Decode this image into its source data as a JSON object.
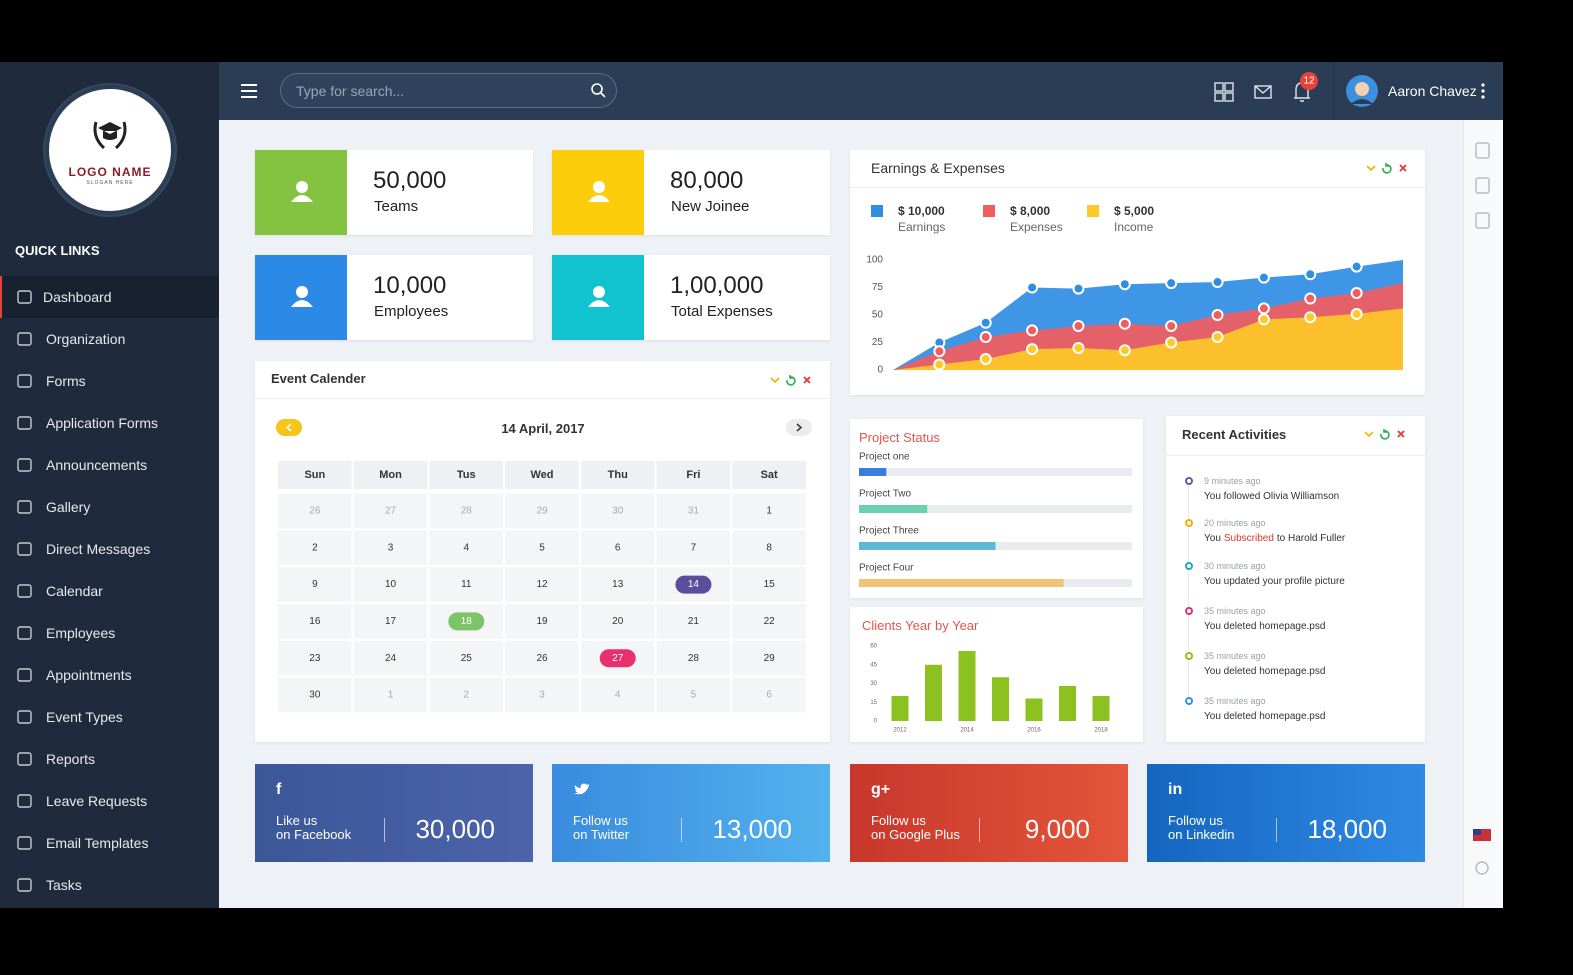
{
  "sidebar": {
    "logo": {
      "name": "LOGO NAME",
      "slogan": "SLOGAN HERE"
    },
    "section": "QUICK LINKS",
    "menu": [
      "Dashboard",
      "Organization",
      "Forms",
      "Application Forms",
      "Announcements",
      "Gallery",
      "Direct Messages",
      "Calendar",
      "Employees",
      "Appointments",
      "Event Types",
      "Reports",
      "Leave Requests",
      "Email Templates",
      "Tasks"
    ]
  },
  "topbar": {
    "search_placeholder": "Type for search...",
    "notifications": "12",
    "user": "Aaron Chavez"
  },
  "stats": [
    {
      "value": "50,000",
      "label": "Teams",
      "color": "#84c33f"
    },
    {
      "value": "80,000",
      "label": "New Joinee",
      "color": "#fccd0b"
    },
    {
      "value": "10,000",
      "label": "Employees",
      "color": "#2a8ae6"
    },
    {
      "value": "1,00,000",
      "label": "Total Expenses",
      "color": "#10c3cf"
    }
  ],
  "calendar": {
    "title": "Event Calender",
    "date": "14 April, 2017",
    "weekdays": [
      "Sun",
      "Mon",
      "Tus",
      "Wed",
      "Thu",
      "Fri",
      "Sat"
    ],
    "weeks": [
      [
        26,
        27,
        28,
        29,
        30,
        31,
        1
      ],
      [
        2,
        3,
        4,
        5,
        6,
        7,
        8
      ],
      [
        9,
        10,
        11,
        12,
        13,
        {
          "day": 14,
          "color": "#5a4f9e"
        },
        15
      ],
      [
        16,
        17,
        {
          "day": 18,
          "color": "#7cc36a"
        },
        19,
        20,
        21,
        22
      ],
      [
        23,
        24,
        25,
        26,
        {
          "day": 27,
          "color": "#e8306c"
        },
        28,
        29
      ],
      [
        30,
        1,
        2,
        3,
        4,
        5,
        6
      ]
    ]
  },
  "chart_data": [
    {
      "type": "area",
      "title": "Earnings & Expenses",
      "ylim": [
        0,
        100
      ],
      "yticks": [
        0,
        25,
        50,
        75,
        100
      ],
      "series": [
        {
          "name": "Earnings",
          "legend_value": "$ 10,000",
          "color": "#2f8de4",
          "values": [
            0,
            25,
            43,
            75,
            74,
            78,
            79,
            80,
            84,
            87,
            94,
            100
          ]
        },
        {
          "name": "Expenses",
          "legend_value": "$ 8,000",
          "color": "#f25c5f",
          "values": [
            0,
            17,
            30,
            36,
            40,
            42,
            40,
            50,
            56,
            65,
            70,
            79
          ]
        },
        {
          "name": "Income",
          "legend_value": "$ 5,000",
          "color": "#ffc928",
          "values": [
            0,
            5,
            10,
            19,
            20,
            18,
            25,
            30,
            46,
            48,
            51,
            56
          ]
        }
      ]
    },
    {
      "type": "progress",
      "title": "Project Status",
      "categories": [
        "Project one",
        "Project Two",
        "Project Three",
        "Project Four"
      ],
      "values": [
        10,
        25,
        50,
        75
      ],
      "colors": [
        "#3a7ddf",
        "#6dd1b1",
        "#5cb9d1",
        "#f1c376"
      ],
      "xlim": [
        0,
        100
      ]
    },
    {
      "type": "bar",
      "title": "Clients Year by Year",
      "categories": [
        "2012",
        null,
        "2014",
        null,
        "2016",
        null,
        "2018"
      ],
      "values": [
        20,
        45,
        56,
        35,
        18,
        28,
        20
      ],
      "color": "#8cc21f",
      "ylim": [
        0,
        60
      ],
      "yticks": [
        0,
        15,
        30,
        45,
        60
      ]
    }
  ],
  "activities": {
    "title": "Recent Activities",
    "items": [
      {
        "time": "9 minutes ago",
        "text": "You followed Olivia Williamson",
        "color": "#5b5ea6"
      },
      {
        "time": "20 minutes ago",
        "before": "You",
        "link": "Subscribed",
        "after": "to Harold Fuller",
        "color": "#f0b400"
      },
      {
        "time": "30 minutes ago",
        "text": "You updated your profile picture",
        "color": "#26a9b4"
      },
      {
        "time": "35 minutes ago",
        "text": "You deleted homepage.psd",
        "color": "#e0307a"
      },
      {
        "time": "35 minutes ago",
        "text": "You deleted homepage.psd",
        "color": "#8cc21f"
      },
      {
        "time": "35 minutes ago",
        "text": "You deleted homepage.psd",
        "color": "#3a8ee6"
      }
    ]
  },
  "social": [
    {
      "icon": "f",
      "line1": "Like us",
      "line2": "on Facebook",
      "value": "30,000",
      "colors": [
        "#3b5797",
        "#4d63ac"
      ]
    },
    {
      "line1": "Follow us",
      "line2": "on Twitter",
      "value": "13,000",
      "colors": [
        "#3a8bde",
        "#53b2ee"
      ]
    },
    {
      "icon": "g+",
      "line1": "Follow us",
      "line2": "on Google Plus",
      "value": "9,000",
      "colors": [
        "#c8372b",
        "#e4553b"
      ]
    },
    {
      "icon": "in",
      "line1": "Follow us",
      "line2": "on Linkedin",
      "value": "18,000",
      "colors": [
        "#1565c0",
        "#2f8ae4"
      ]
    }
  ]
}
